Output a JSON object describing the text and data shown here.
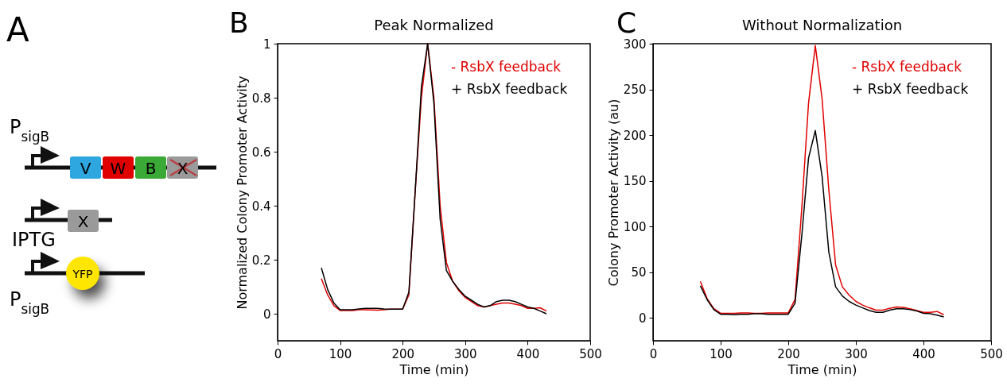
{
  "chart_data": [
    {
      "type": "other",
      "annotations": [
        "A",
        "P$_{sigB}$",
        "V",
        "W",
        "B",
        "X",
        "X",
        "IPTG",
        "YFP",
        "P$_{sigB}$"
      ]
    },
    {
      "type": "line",
      "title": "Peak Normalized",
      "xlabel": "Time (min)",
      "ylabel": "Normalized Colony Promoter Activity",
      "annotations": [
        "B"
      ],
      "x": [
        70,
        80,
        90,
        100,
        110,
        120,
        130,
        140,
        150,
        160,
        170,
        180,
        190,
        200,
        210,
        220,
        230,
        240,
        250,
        260,
        270,
        280,
        290,
        300,
        310,
        320,
        330,
        340,
        350,
        360,
        370,
        380,
        390,
        400,
        410,
        420,
        430
      ],
      "series": [
        {
          "name": "- RsbX feedback",
          "color": "#e00000",
          "values": [
            0.13,
            0.07,
            0.03,
            0.012,
            0.012,
            0.012,
            0.015,
            0.015,
            0.014,
            0.013,
            0.015,
            0.017,
            0.017,
            0.017,
            0.07,
            0.45,
            0.8,
            1.0,
            0.8,
            0.4,
            0.19,
            0.12,
            0.085,
            0.06,
            0.045,
            0.03,
            0.025,
            0.03,
            0.035,
            0.04,
            0.04,
            0.035,
            0.03,
            0.02,
            0.02,
            0.022,
            0.01
          ]
        },
        {
          "name": "+ RsbX feedback",
          "color": "#000000",
          "values": [
            0.17,
            0.09,
            0.04,
            0.015,
            0.015,
            0.015,
            0.018,
            0.02,
            0.02,
            0.02,
            0.018,
            0.017,
            0.017,
            0.017,
            0.08,
            0.45,
            0.84,
            1.0,
            0.78,
            0.35,
            0.16,
            0.12,
            0.09,
            0.065,
            0.05,
            0.035,
            0.025,
            0.03,
            0.045,
            0.05,
            0.05,
            0.045,
            0.035,
            0.025,
            0.02,
            0.01,
            0.0
          ]
        }
      ],
      "xlim": [
        0,
        500
      ],
      "xticks": [
        0,
        100,
        200,
        300,
        400,
        500
      ],
      "ylim": [
        -0.1,
        1
      ],
      "yticks": [
        {
          "value": 0,
          "label": "0"
        },
        0.2,
        0.4,
        0.6,
        0.8,
        {
          "value": 1,
          "label": "1"
        }
      ],
      "legend": "top right",
      "line_style": "solid"
    },
    {
      "type": "line",
      "title": "Without Normalization",
      "xlabel": "Time (min)",
      "ylabel": "Colony Promoter Activity (au)",
      "annotations": [
        "C"
      ],
      "x": [
        70,
        80,
        90,
        100,
        110,
        120,
        130,
        140,
        150,
        160,
        170,
        180,
        190,
        200,
        210,
        220,
        230,
        240,
        250,
        260,
        270,
        280,
        290,
        300,
        310,
        320,
        330,
        340,
        350,
        360,
        370,
        380,
        390,
        400,
        410,
        420,
        430
      ],
      "series": [
        {
          "name": "- RsbX feedback",
          "color": "#e00000",
          "values": [
            40,
            21,
            10,
            5,
            5,
            5,
            5.5,
            5.5,
            5,
            5,
            5.5,
            5.5,
            5.5,
            5.5,
            20,
            120,
            235,
            298,
            240,
            140,
            58,
            34,
            25,
            18,
            14,
            11,
            8.5,
            8.5,
            10.5,
            12,
            11.5,
            10,
            8,
            6,
            6,
            7,
            3.5
          ]
        },
        {
          "name": "+ RsbX feedback",
          "color": "#000000",
          "values": [
            35,
            20,
            9,
            4,
            4,
            3.5,
            4,
            4,
            4.5,
            4.5,
            4,
            4,
            4,
            4,
            16,
            90,
            175,
            205,
            155,
            72,
            34,
            24,
            18,
            14,
            11,
            8,
            6,
            6,
            8.5,
            10,
            10,
            9,
            7.5,
            5,
            4.5,
            3,
            1
          ]
        }
      ],
      "xlim": [
        0,
        500
      ],
      "xticks": [
        0,
        100,
        200,
        300,
        400,
        500
      ],
      "ylim": [
        -25,
        300
      ],
      "yticks": [
        0,
        50,
        100,
        150,
        200,
        250,
        300
      ],
      "legend": "top right",
      "line_style": "solid"
    }
  ]
}
